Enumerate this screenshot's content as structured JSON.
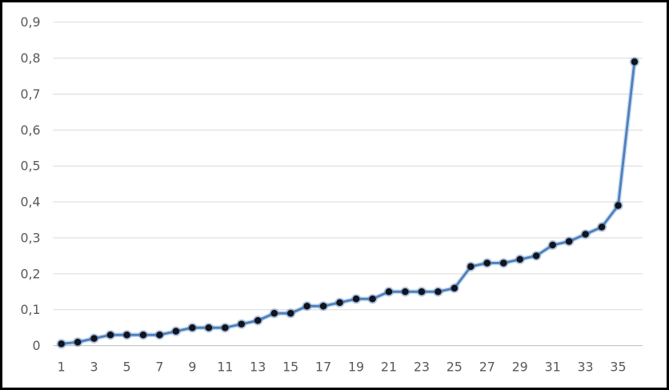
{
  "chart_data": {
    "type": "line",
    "title": "",
    "xlabel": "",
    "ylabel": "",
    "legend": "none",
    "grid": true,
    "decimal_separator": ",",
    "ylim": [
      0,
      0.9
    ],
    "categories": [
      1,
      2,
      3,
      4,
      5,
      6,
      7,
      8,
      9,
      10,
      11,
      12,
      13,
      14,
      15,
      16,
      17,
      18,
      19,
      20,
      21,
      22,
      23,
      24,
      25,
      26,
      27,
      28,
      29,
      30,
      31,
      32,
      33,
      34,
      35,
      36
    ],
    "values": [
      0.005,
      0.01,
      0.02,
      0.03,
      0.03,
      0.03,
      0.03,
      0.04,
      0.05,
      0.05,
      0.05,
      0.06,
      0.07,
      0.09,
      0.09,
      0.11,
      0.11,
      0.12,
      0.13,
      0.13,
      0.15,
      0.15,
      0.15,
      0.15,
      0.16,
      0.22,
      0.23,
      0.23,
      0.24,
      0.25,
      0.28,
      0.29,
      0.31,
      0.33,
      0.39,
      0.79
    ],
    "y_ticks": [
      {
        "value": 0,
        "label": "0"
      },
      {
        "value": 0.1,
        "label": "0,1"
      },
      {
        "value": 0.2,
        "label": "0,2"
      },
      {
        "value": 0.3,
        "label": "0,3"
      },
      {
        "value": 0.4,
        "label": "0,4"
      },
      {
        "value": 0.5,
        "label": "0,5"
      },
      {
        "value": 0.6,
        "label": "0,6"
      },
      {
        "value": 0.7,
        "label": "0,7"
      },
      {
        "value": 0.8,
        "label": "0,8"
      },
      {
        "value": 0.9,
        "label": "0,9"
      }
    ],
    "x_ticks": [
      {
        "value": 1,
        "label": "1"
      },
      {
        "value": 3,
        "label": "3"
      },
      {
        "value": 5,
        "label": "5"
      },
      {
        "value": 7,
        "label": "7"
      },
      {
        "value": 9,
        "label": "9"
      },
      {
        "value": 11,
        "label": "11"
      },
      {
        "value": 13,
        "label": "13"
      },
      {
        "value": 15,
        "label": "15"
      },
      {
        "value": 17,
        "label": "17"
      },
      {
        "value": 19,
        "label": "19"
      },
      {
        "value": 21,
        "label": "21"
      },
      {
        "value": 23,
        "label": "23"
      },
      {
        "value": 25,
        "label": "25"
      },
      {
        "value": 27,
        "label": "27"
      },
      {
        "value": 29,
        "label": "29"
      },
      {
        "value": 31,
        "label": "31"
      },
      {
        "value": 33,
        "label": "33"
      },
      {
        "value": 35,
        "label": "35"
      }
    ],
    "colors": {
      "line": "#4F81BD",
      "line_halo": "#A9C5E4",
      "marker_fill": "#11131D",
      "gridline": "#D9D9D9",
      "axis_line": "#BFBFBF",
      "tick_label": "#595959",
      "background": "#FFFFFF",
      "border": "#000000"
    }
  }
}
